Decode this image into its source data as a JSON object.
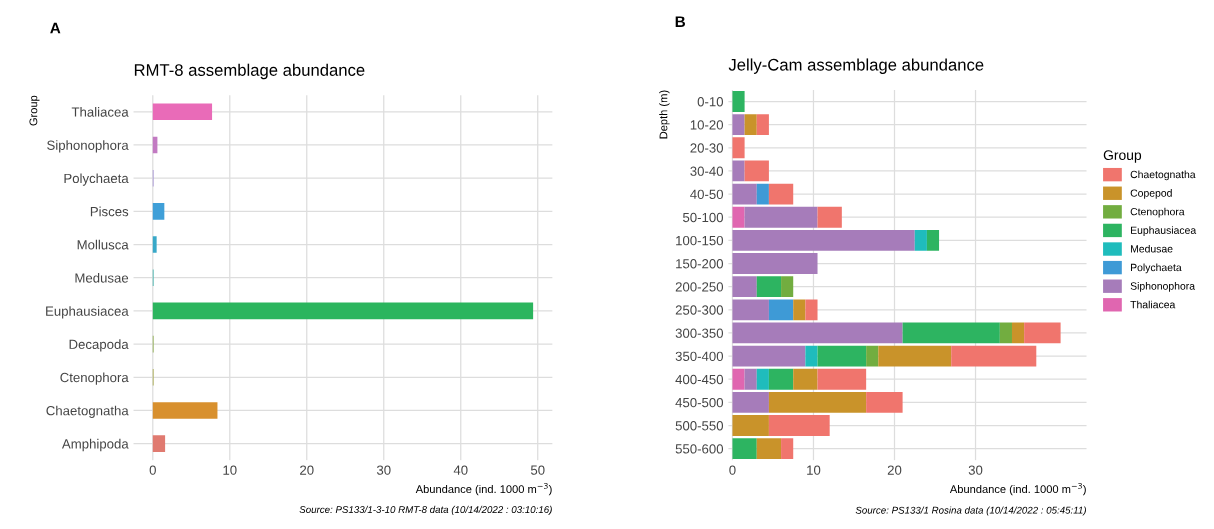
{
  "chart_data": [
    {
      "type": "bar",
      "orientation": "horizontal",
      "title": "RMT-8 assemblage abundance",
      "xlabel": "Abundance (ind. 1000 m$^{−3}$)",
      "ylabel": "Group",
      "categories": [
        "Thaliacea",
        "Siphonophora",
        "Polychaeta",
        "Pisces",
        "Mollusca",
        "Medusae",
        "Euphausiacea",
        "Decapoda",
        "Ctenophora",
        "Chaetognatha",
        "Amphipoda"
      ],
      "values": [
        7.7,
        0.6,
        0.1,
        1.5,
        0.5,
        0.1,
        49.4,
        0.1,
        0.1,
        8.4,
        1.6
      ],
      "colors": [
        "#e96bb8",
        "#c27ac2",
        "#a38fd6",
        "#3f9fd8",
        "#38a8c8",
        "#35b0a8",
        "#2bb55e",
        "#86a840",
        "#a3a540",
        "#d8902e",
        "#e07a70"
      ],
      "xlim": [
        -2.5,
        51.9
      ],
      "xticks": [
        0,
        10,
        20,
        30,
        40,
        50
      ],
      "grid": true,
      "legend": false,
      "annotations": [
        "A",
        "Source: PS133/1-3-10 RMT-8 data (10/14/2022 : 03:10:16)"
      ]
    },
    {
      "type": "bar",
      "orientation": "horizontal",
      "stacked": true,
      "title": "Jelly-Cam assemblage abundance",
      "xlabel": "Abundance (ind. 1000 m$^{−3}$)",
      "ylabel": "Depth (m)",
      "legend_title": "Group",
      "legend": "right",
      "categories": [
        "0-10",
        "10-20",
        "20-30",
        "30-40",
        "40-50",
        "50-100",
        "100-150",
        "150-200",
        "200-250",
        "250-300",
        "300-350",
        "350-400",
        "400-450",
        "450-500",
        "500-550",
        "550-600"
      ],
      "series": [
        {
          "name": "Thaliacea",
          "color": "#e066b0",
          "values": [
            0,
            0,
            0,
            0,
            0,
            1.5,
            0,
            0,
            0,
            0,
            0,
            0,
            1.5,
            0,
            0,
            0
          ]
        },
        {
          "name": "Siphonophora",
          "color": "#a67cba",
          "values": [
            0,
            1.5,
            0,
            1.5,
            3.0,
            9.0,
            22.5,
            10.5,
            3.0,
            4.5,
            21.0,
            9.0,
            1.5,
            4.5,
            0,
            0
          ]
        },
        {
          "name": "Polychaeta",
          "color": "#3e9ad6",
          "values": [
            0,
            0,
            0,
            0,
            1.5,
            0,
            0,
            0,
            0,
            3.0,
            0,
            0,
            0,
            0,
            0,
            0
          ]
        },
        {
          "name": "Medusae",
          "color": "#1fbcbc",
          "values": [
            0,
            0,
            0,
            0,
            0,
            0,
            1.5,
            0,
            0,
            0,
            0,
            1.5,
            1.5,
            0,
            0,
            0
          ]
        },
        {
          "name": "Euphausiacea",
          "color": "#2db461",
          "values": [
            1.5,
            0,
            0,
            0,
            0,
            0,
            1.5,
            0,
            3.0,
            0,
            12.0,
            6.0,
            3.0,
            0,
            0,
            3.0
          ]
        },
        {
          "name": "Ctenophora",
          "color": "#72ad40",
          "values": [
            0,
            0,
            0,
            0,
            0,
            0,
            0,
            0,
            1.5,
            0,
            1.5,
            1.5,
            0,
            0,
            0,
            0
          ]
        },
        {
          "name": "Copepod",
          "color": "#c9932a",
          "values": [
            0,
            1.5,
            0,
            0,
            0,
            0,
            0,
            0,
            0,
            1.5,
            1.5,
            9.0,
            3.0,
            12.0,
            4.5,
            3.0
          ]
        },
        {
          "name": "Chaetognatha",
          "color": "#f0756d",
          "values": [
            0,
            1.5,
            1.5,
            3.0,
            3.0,
            3.0,
            0,
            0,
            0,
            1.5,
            4.5,
            10.5,
            6.0,
            4.5,
            7.5,
            1.5
          ]
        }
      ],
      "xlim": [
        -0.5,
        43.7
      ],
      "xticks": [
        0,
        10,
        20,
        30
      ],
      "grid": true,
      "annotations": [
        "B",
        "Source: PS133/1 Rosina data (10/14/2022 : 05:45:11)"
      ]
    }
  ]
}
